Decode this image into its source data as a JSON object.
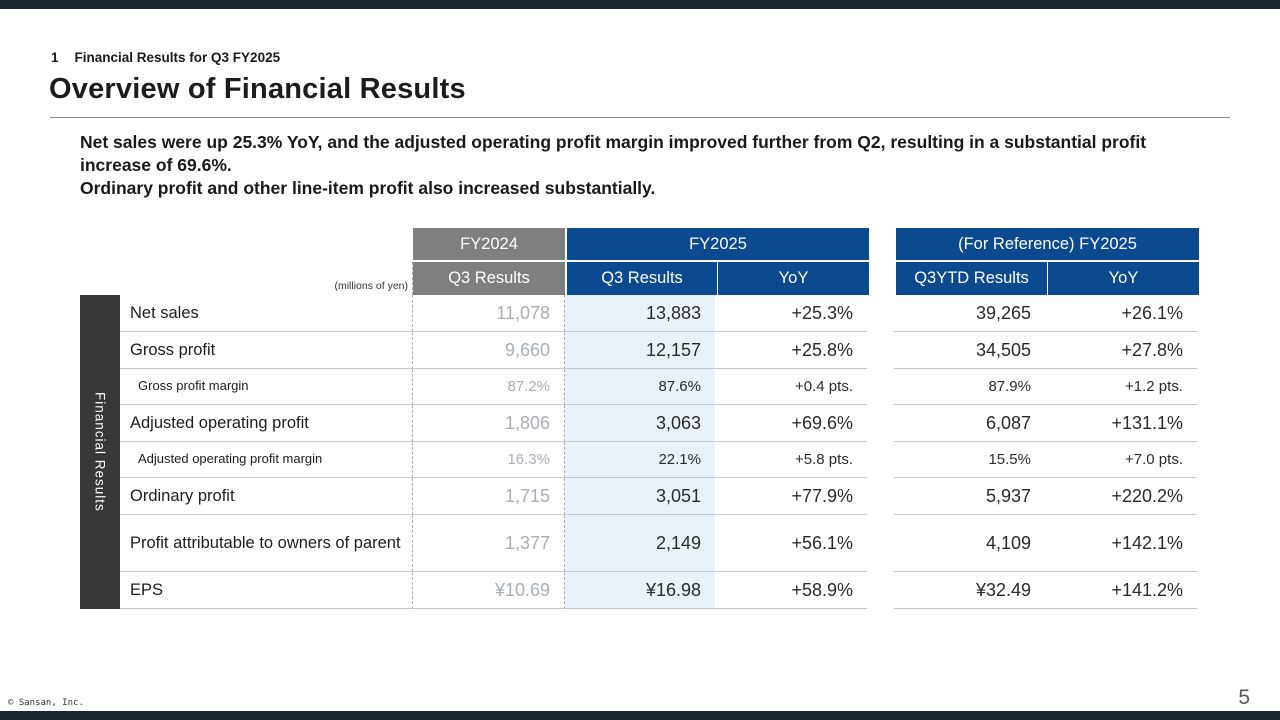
{
  "slide": {
    "section_number": "1",
    "section_title": "Financial Results for Q3 FY2025",
    "title": "Overview of Financial Results",
    "summary_line1": "Net sales were up 25.3% YoY, and the adjusted operating profit margin improved further from Q2, resulting in a substantial profit increase of 69.6%.",
    "summary_line2": "Ordinary profit and other line-item profit also increased substantially.",
    "footer": "© Sansan, Inc.",
    "page_number": "5"
  },
  "table": {
    "unit_label": "(millions of yen)",
    "side_label": "Financial Results",
    "groups": [
      {
        "label": "FY2024"
      },
      {
        "label": "FY2025"
      },
      {
        "label": "(For Reference) FY2025"
      }
    ],
    "columns": [
      "Q3 Results",
      "Q3 Results",
      "YoY",
      "Q3YTD Results",
      "YoY"
    ],
    "rows": [
      {
        "label": "Net sales",
        "values": [
          "11,078",
          "13,883",
          "+25.3%",
          "39,265",
          "+26.1%"
        ]
      },
      {
        "label": "Gross profit",
        "values": [
          "9,660",
          "12,157",
          "+25.8%",
          "34,505",
          "+27.8%"
        ]
      },
      {
        "label": "Gross profit margin",
        "values": [
          "87.2%",
          "87.6%",
          "+0.4 pts.",
          "87.9%",
          "+1.2 pts."
        ]
      },
      {
        "label": "Adjusted operating profit",
        "values": [
          "1,806",
          "3,063",
          "+69.6%",
          "6,087",
          "+131.1%"
        ]
      },
      {
        "label": "Adjusted operating profit margin",
        "values": [
          "16.3%",
          "22.1%",
          "+5.8 pts.",
          "15.5%",
          "+7.0 pts."
        ]
      },
      {
        "label": "Ordinary profit",
        "values": [
          "1,715",
          "3,051",
          "+77.9%",
          "5,937",
          "+220.2%"
        ]
      },
      {
        "label": "Profit attributable to owners of parent",
        "values": [
          "1,377",
          "2,149",
          "+56.1%",
          "4,109",
          "+142.1%"
        ]
      },
      {
        "label": "EPS",
        "values": [
          "¥10.69",
          "¥16.98",
          "+58.9%",
          "¥32.49",
          "+141.2%"
        ]
      }
    ],
    "colors": {
      "bar_navy": "#18242f",
      "header_blue": "#0b4a8f",
      "header_gray": "#7f7f7f",
      "highlight_col": "#e9f1f9",
      "fy2024_text": "#a9aeb6",
      "side_box": "#383838"
    }
  }
}
